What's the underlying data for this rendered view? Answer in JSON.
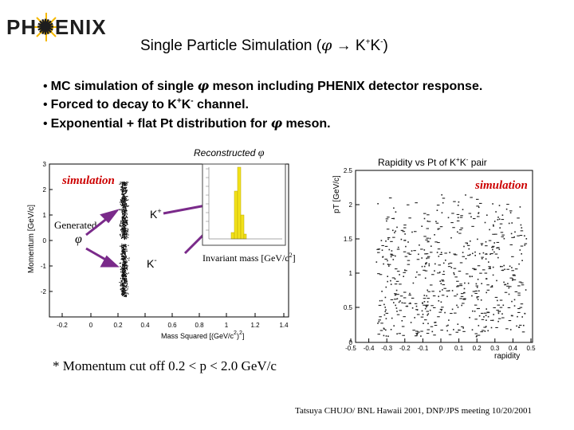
{
  "header": {
    "logo_text": "PH✺ENIX",
    "title_prefix": "Single Particle Simulation (",
    "title_phi": "φ",
    "title_arrow": " → ",
    "title_k": "K",
    "title_plus": "+",
    "title_k2": "K",
    "title_minus": "-",
    "title_suffix": ")"
  },
  "bullets": {
    "b1_pre": "MC simulation of single ",
    "b1_phi": "φ",
    "b1_post": " meson including PHENIX detector response.",
    "b2_pre": "Forced to decay to K",
    "b2_plus": "+",
    "b2_mid": "K",
    "b2_minus": "-",
    "b2_post": " channel.",
    "b3_pre": "Exponential + flat Pt distribution for ",
    "b3_phi": "φ",
    "b3_post": " meson."
  },
  "left_plot": {
    "ylabel": "Momentum [GeV/c]",
    "xlabel_text": "Mass Squared [(GeV/c",
    "xlabel_sup": "2",
    "xlabel_tail": ")",
    "xlabel_sup2": "2",
    "xlabel_close": "]",
    "simulation_label": "simulation",
    "generated_label": "Generated",
    "generated_phi": "φ",
    "kplus_label": "K",
    "kplus_sign": "+",
    "kminus_label": "K",
    "kminus_sign": "-",
    "yticks": [
      "3",
      "2",
      "1",
      "0",
      "-1",
      "-2"
    ],
    "xticks": [
      "-0.2",
      "0",
      "0.2",
      "0.4",
      "0.6",
      "0.8",
      "1",
      "1.2",
      "1.4"
    ]
  },
  "inset": {
    "title": "Reconstructed ",
    "title_phi": "φ",
    "xlabel": "Invariant mass [GeV/c",
    "xlabel_sup": "2",
    "xlabel_close": "]"
  },
  "right_plot": {
    "title_pre": "Rapidity vs Pt of K",
    "title_sup1": "+",
    "title_mid": "K",
    "title_sup2": "-",
    "title_post": " pair",
    "ylabel": "pT [GeV/c]",
    "xlabel": "rapidity",
    "simulation_label": "simulation",
    "yticks": [
      "2.5",
      "2",
      "1.5",
      "1",
      "0.5",
      "0"
    ],
    "xticks": [
      "-0.5",
      "-0.4",
      "-0.3",
      "-0.2",
      "-0.1",
      "0",
      "0.1",
      "0.2",
      "0.3",
      "0.4",
      "0.5"
    ]
  },
  "footer": {
    "footnote": "* Momentum cut off 0.2 < p < 2.0 GeV/c",
    "credit": "Tatsuya CHUJO/ BNL   Hawaii 2001, DNP/JPS meeting  10/20/2001"
  },
  "colors": {
    "histogram": "#f2e21a",
    "logo_sun": "#f5b800"
  }
}
